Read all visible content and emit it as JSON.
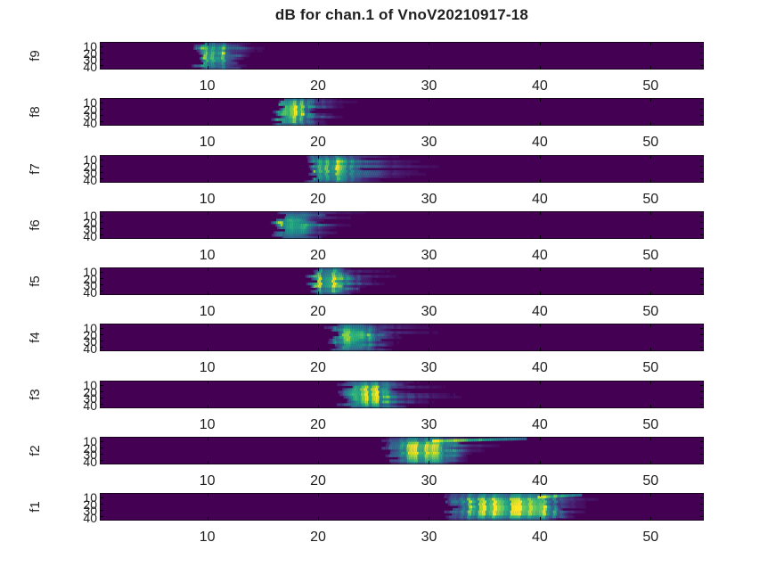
{
  "title": "dB for chan.1 of VnoV20210917-18",
  "colors": {
    "figure_background": "#ffffff",
    "axis_text": "#1f1f1f",
    "strip_background": "#440154",
    "colormap_low": "#440154",
    "colormap_mid": "#21918c",
    "colormap_high": "#fde725"
  },
  "chart_data": {
    "type": "heatmap",
    "title": "dB for chan.1 of VnoV20210917-18",
    "layout": "9 stacked spectrogram strips, shared x axis style",
    "colormap": "viridis",
    "x_ticks": [
      10,
      20,
      30,
      40,
      50
    ],
    "x_range": [
      0.3,
      54.8
    ],
    "y_ticks": [
      10,
      20,
      30,
      40
    ],
    "y_range": [
      1,
      46
    ],
    "grid": false,
    "legend": "none",
    "subplots": [
      {
        "label": "f9",
        "blob": {
          "start": 9.2,
          "peak_lo": 9.6,
          "peak_hi": 11.0,
          "end": 12.4,
          "tail": 15.8
        },
        "top_streak": null
      },
      {
        "label": "f8",
        "blob": {
          "start": 16.3,
          "peak_lo": 16.8,
          "peak_hi": 18.4,
          "end": 19.8,
          "tail": 24.0
        },
        "top_streak": null
      },
      {
        "label": "f7",
        "blob": {
          "start": 19.2,
          "peak_lo": 19.8,
          "peak_hi": 21.8,
          "end": 24.3,
          "tail": 33.5
        },
        "top_streak": null
      },
      {
        "label": "f6",
        "blob": {
          "start": 16.4,
          "peak_lo": 16.9,
          "peak_hi": 18.6,
          "end": 19.8,
          "tail": 25.0
        },
        "top_streak": null
      },
      {
        "label": "f5",
        "blob": {
          "start": 19.3,
          "peak_lo": 19.9,
          "peak_hi": 21.7,
          "end": 22.8,
          "tail": 27.5
        },
        "top_streak": null
      },
      {
        "label": "f4",
        "blob": {
          "start": 21.2,
          "peak_lo": 22.2,
          "peak_hi": 23.8,
          "end": 25.0,
          "tail": 31.5
        },
        "top_streak": null
      },
      {
        "label": "f3",
        "blob": {
          "start": 22.3,
          "peak_lo": 23.3,
          "peak_hi": 25.6,
          "end": 27.0,
          "tail": 34.5
        },
        "top_streak": null
      },
      {
        "label": "f2",
        "blob": {
          "start": 26.4,
          "peak_lo": 28.3,
          "peak_hi": 31.2,
          "end": 32.4,
          "tail": 36.5
        },
        "top_streak": {
          "from": 30.3,
          "to": 38.8
        }
      },
      {
        "label": "f1",
        "blob": {
          "start": 32.0,
          "peak_lo": 34.2,
          "peak_hi": 40.2,
          "end": 41.5,
          "tail": 45.5
        },
        "top_streak": {
          "from": 39.8,
          "to": 43.8
        }
      }
    ]
  }
}
